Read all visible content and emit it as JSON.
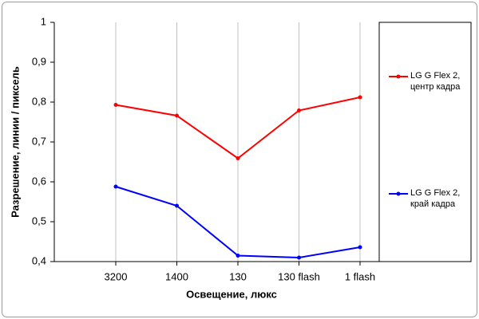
{
  "chart_data": {
    "type": "line",
    "x_label": "Освещение, люкс",
    "y_label": "Разрешение, линии / пиксель",
    "categories": [
      "3200",
      "1400",
      "130",
      "130 flash",
      "1 flash"
    ],
    "series": [
      {
        "name": "LG G Flex 2, центр кадра",
        "color": "#ff0000",
        "values": [
          0.793,
          0.766,
          0.659,
          0.779,
          0.812
        ]
      },
      {
        "name": "LG G Flex 2, край кадра",
        "color": "#0000ff",
        "values": [
          0.588,
          0.54,
          0.415,
          0.41,
          0.436
        ]
      }
    ],
    "ylim": [
      0.4,
      1
    ],
    "yticks": [
      {
        "value": 0.4,
        "label": "0,4"
      },
      {
        "value": 0.5,
        "label": "0,5"
      },
      {
        "value": 0.6,
        "label": "0,6"
      },
      {
        "value": 0.7,
        "label": "0,7"
      },
      {
        "value": 0.8,
        "label": "0,8"
      },
      {
        "value": 0.9,
        "label": "0,9"
      },
      1
    ],
    "grid": true
  }
}
